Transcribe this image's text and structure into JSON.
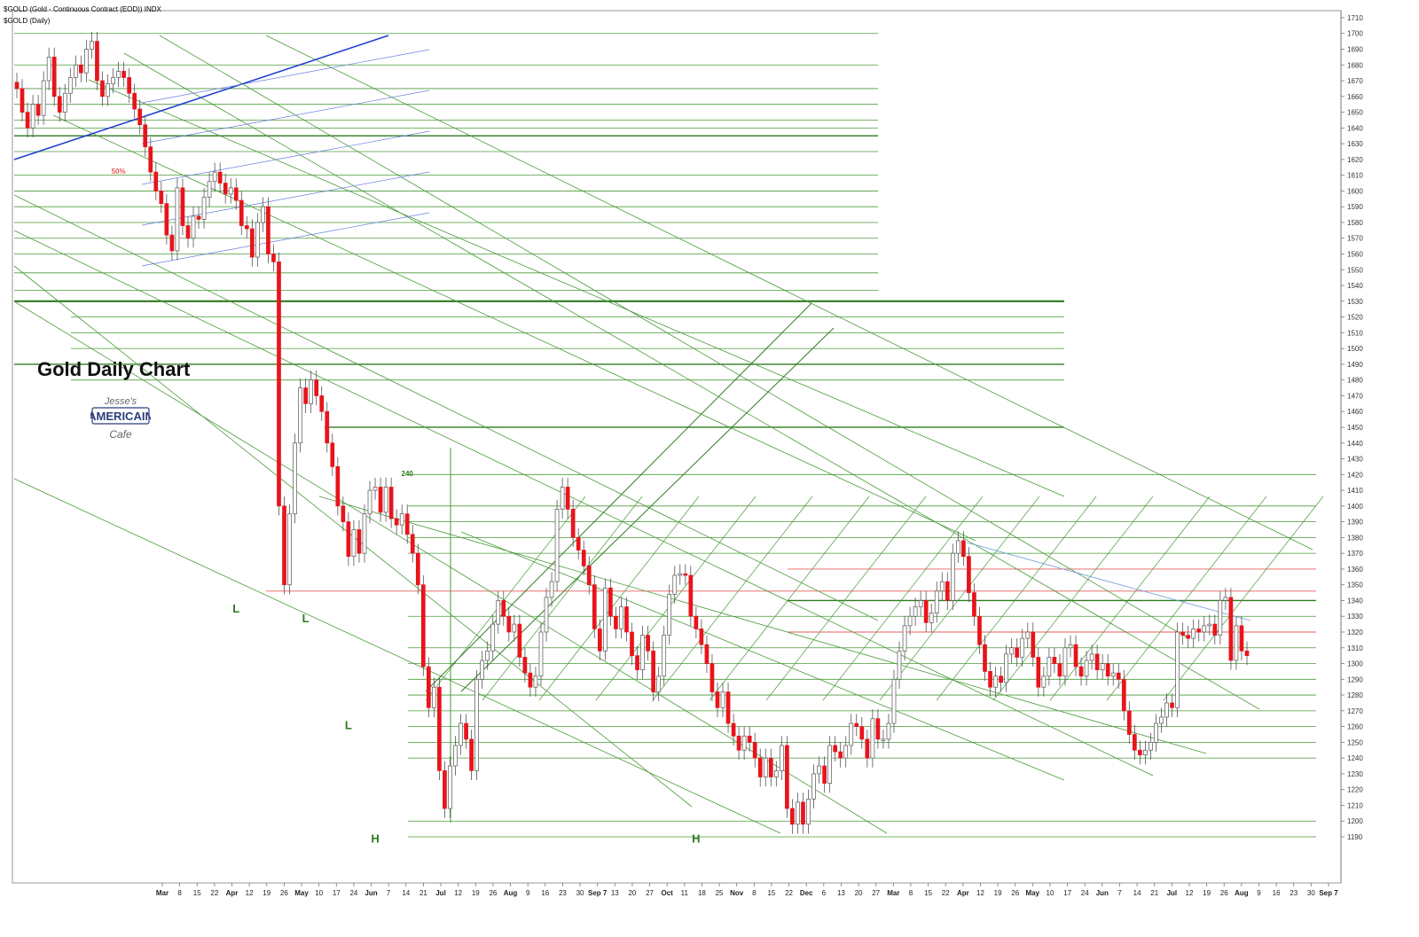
{
  "header": {
    "symbol_line": "$GOLD (Gold - Continuous Contract (EOD)) INDX",
    "sub_line": "$GOLD (Daily)"
  },
  "title": "Gold Daily Chart",
  "logo": {
    "line1": "Jesse's",
    "line2": "AMERICAIN",
    "line3": "Cafe"
  },
  "colors": {
    "up": "#ffffff",
    "down": "#e8141b",
    "wick": "#555555",
    "fib_green": "#4a9a3a",
    "strong_green": "#2f7a1f",
    "red_level": "#e85c5c",
    "blue": "#1e3fd0"
  },
  "chart_data": {
    "type": "candlestick",
    "y_axis": {
      "min": 1180,
      "max": 1715,
      "step": 10,
      "position": "right"
    },
    "x_tick_labels": [
      "Mar",
      "8",
      "15",
      "22",
      "Apr",
      "12",
      "19",
      "26",
      "May",
      "10",
      "17",
      "24",
      "Jun",
      "7",
      "14",
      "21",
      "Jul",
      "12",
      "19",
      "26",
      "Aug",
      "9",
      "16",
      "23",
      "30",
      "Sep 7",
      "13",
      "20",
      "27",
      "Oct",
      "11",
      "18",
      "25",
      "Nov",
      "8",
      "15",
      "22",
      "Dec",
      "6",
      "13",
      "20",
      "27",
      "Mar",
      "8",
      "15",
      "22",
      "Apr",
      "12",
      "19",
      "26",
      "May",
      "10",
      "17",
      "24",
      "Jun",
      "7",
      "14",
      "21",
      "Jul",
      "12",
      "19",
      "26",
      "Aug",
      "9",
      "16",
      "23",
      "30",
      "Sep 7"
    ],
    "annotations": [
      {
        "text": "L",
        "x_index": 41,
        "y": 1339
      },
      {
        "text": "L",
        "x_index": 54,
        "y": 1333
      },
      {
        "text": "L",
        "x_index": 62,
        "y": 1265
      },
      {
        "text": "H",
        "x_index": 67,
        "y": 1193
      },
      {
        "text": "H",
        "x_index": 127,
        "y": 1193
      },
      {
        "text": "240",
        "x_index": 73,
        "y": 1419
      },
      {
        "text": "50%",
        "x_index": 19,
        "y": 1611
      }
    ],
    "strong_levels": [
      1635,
      1530,
      1490,
      1450,
      1340
    ],
    "red_levels": [
      1360,
      1346,
      1320
    ],
    "level_band_upper": [
      1700,
      1680,
      1665,
      1655,
      1645,
      1640,
      1625,
      1610,
      1600,
      1590,
      1580,
      1570,
      1560,
      1548,
      1537
    ],
    "level_band_middle": [
      1520,
      1510,
      1500,
      1480
    ],
    "level_band_lower": [
      1420,
      1400,
      1390,
      1380,
      1370,
      1330,
      1310,
      1300,
      1290,
      1280,
      1270,
      1260,
      1250,
      1240,
      1200,
      1190
    ],
    "close": [
      1665,
      1650,
      1640,
      1655,
      1648,
      1670,
      1685,
      1660,
      1650,
      1662,
      1672,
      1680,
      1675,
      1690,
      1695,
      1670,
      1660,
      1668,
      1672,
      1676,
      1672,
      1662,
      1652,
      1642,
      1628,
      1612,
      1600,
      1592,
      1572,
      1562,
      1602,
      1578,
      1570,
      1584,
      1582,
      1596,
      1606,
      1612,
      1605,
      1598,
      1602,
      1594,
      1578,
      1576,
      1558,
      1580,
      1590,
      1560,
      1555,
      1400,
      1350,
      1395,
      1440,
      1475,
      1465,
      1480,
      1470,
      1460,
      1440,
      1425,
      1400,
      1390,
      1368,
      1385,
      1370,
      1395,
      1410,
      1412,
      1396,
      1412,
      1392,
      1388,
      1395,
      1382,
      1370,
      1350,
      1298,
      1272,
      1285,
      1232,
      1208,
      1235,
      1248,
      1262,
      1252,
      1232,
      1290,
      1302,
      1308,
      1325,
      1340,
      1330,
      1320,
      1325,
      1304,
      1294,
      1285,
      1292,
      1320,
      1342,
      1352,
      1398,
      1412,
      1398,
      1380,
      1372,
      1362,
      1350,
      1322,
      1308,
      1348,
      1330,
      1322,
      1336,
      1320,
      1305,
      1296,
      1318,
      1308,
      1282,
      1292,
      1318,
      1344,
      1356,
      1357,
      1356,
      1330,
      1322,
      1312,
      1300,
      1282,
      1272,
      1282,
      1262,
      1254,
      1245,
      1254,
      1250,
      1240,
      1228,
      1240,
      1228,
      1232,
      1248,
      1208,
      1198,
      1212,
      1198,
      1214,
      1230,
      1235,
      1224,
      1248,
      1244,
      1240,
      1248,
      1262,
      1260,
      1252,
      1240,
      1265,
      1252,
      1252,
      1262,
      1290,
      1308,
      1324,
      1330,
      1336,
      1340,
      1326,
      1332,
      1346,
      1352,
      1340,
      1370,
      1378,
      1368,
      1345,
      1330,
      1312,
      1295,
      1285,
      1292,
      1288,
      1306,
      1310,
      1304,
      1316,
      1320,
      1304,
      1285,
      1292,
      1304,
      1300,
      1292,
      1310,
      1312,
      1298,
      1292,
      1302,
      1306,
      1296,
      1300,
      1292,
      1294,
      1290,
      1270,
      1255,
      1245,
      1242,
      1245,
      1250,
      1262,
      1266,
      1275,
      1272,
      1320,
      1318,
      1316,
      1322,
      1320,
      1324,
      1325,
      1318,
      1340,
      1342,
      1302,
      1324,
      1308,
      1305
    ],
    "source": "visual estimate"
  }
}
